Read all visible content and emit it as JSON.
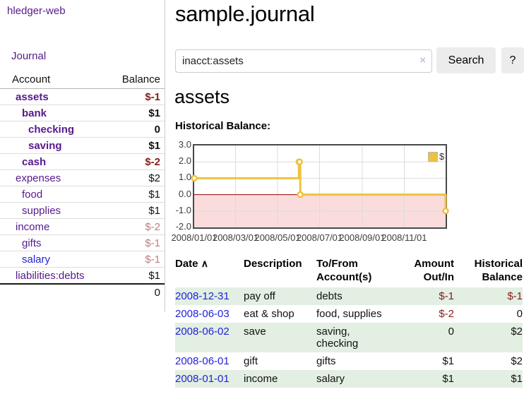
{
  "header": {
    "title": "sample.journal"
  },
  "search": {
    "value": "inacct:assets",
    "clear_icon": "×",
    "button_label": "Search",
    "help_label": "?"
  },
  "sidebar": {
    "brand": "hledger-web",
    "journal_link": "Journal",
    "accounts": {
      "col_account": "Account",
      "col_balance": "Balance",
      "rows": [
        {
          "name": "assets",
          "depth": 1,
          "balance": "$-1",
          "in_query": true,
          "tone": "neg"
        },
        {
          "name": "bank",
          "depth": 2,
          "balance": "$1",
          "in_query": true,
          "tone": "normal"
        },
        {
          "name": "checking",
          "depth": 3,
          "balance": "0",
          "in_query": true,
          "tone": "normal"
        },
        {
          "name": "saving",
          "depth": 3,
          "balance": "$1",
          "in_query": true,
          "tone": "normal"
        },
        {
          "name": "cash",
          "depth": 2,
          "balance": "$-2",
          "in_query": true,
          "tone": "neg"
        },
        {
          "name": "expenses",
          "depth": 1,
          "balance": "$2",
          "in_query": false,
          "tone": "normal"
        },
        {
          "name": "food",
          "depth": 2,
          "balance": "$1",
          "in_query": false,
          "tone": "normal"
        },
        {
          "name": "supplies",
          "depth": 2,
          "balance": "$1",
          "in_query": false,
          "tone": "normal"
        },
        {
          "name": "income",
          "depth": 1,
          "balance": "$-2",
          "in_query": false,
          "tone": "neg-muted"
        },
        {
          "name": "gifts",
          "depth": 2,
          "balance": "$-1",
          "in_query": false,
          "tone": "neg-muted"
        },
        {
          "name": "salary",
          "depth": 2,
          "balance": "$-1",
          "in_query": false,
          "tone": "neg-muted",
          "link_color": "blue"
        },
        {
          "name": "liabilities:debts",
          "depth": 1,
          "balance": "$1",
          "in_query": false,
          "tone": "normal"
        }
      ],
      "total": "0"
    }
  },
  "account_page": {
    "heading": "assets",
    "chart_label": "Historical Balance:"
  },
  "chart_data": {
    "type": "line",
    "style": "steps",
    "title": "Historical Balance:",
    "legend": "$",
    "legend_position": "top-right",
    "grid": true,
    "x_range_days": 365,
    "ylim": [
      -2,
      3
    ],
    "y_ticks": [
      3.0,
      2.0,
      1.0,
      0.0,
      -1.0,
      -2.0
    ],
    "x_ticks": [
      {
        "label": "2008/01/01",
        "day": 0
      },
      {
        "label": "2008/03/01",
        "day": 60
      },
      {
        "label": "2008/05/01",
        "day": 121
      },
      {
        "label": "2008/07/01",
        "day": 182
      },
      {
        "label": "2008/09/01",
        "day": 244
      },
      {
        "label": "2008/11/01",
        "day": 305
      }
    ],
    "series": [
      {
        "name": "$",
        "points": [
          {
            "date": "2008-01-01",
            "day": 0,
            "value": 1
          },
          {
            "date": "2008-06-01",
            "day": 152,
            "value": 2
          },
          {
            "date": "2008-06-02",
            "day": 153,
            "value": 2
          },
          {
            "date": "2008-06-03",
            "day": 154,
            "value": 0
          },
          {
            "date": "2008-12-31",
            "day": 365,
            "value": -1
          }
        ]
      }
    ]
  },
  "register": {
    "columns": [
      {
        "label": "Date",
        "sorted": true,
        "align": "left"
      },
      {
        "label": "Description",
        "align": "left"
      },
      {
        "label": "To/From\nAccount(s)",
        "align": "left"
      },
      {
        "label": "Amount\nOut/In",
        "align": "right"
      },
      {
        "label": "Historical\nBalance",
        "align": "right"
      }
    ],
    "sort_indicator": "∧",
    "rows": [
      {
        "date": "2008-12-31",
        "description": "pay off",
        "accounts": "debts",
        "amount": "$-1",
        "amount_negative": true,
        "balance": "$-1",
        "balance_negative": true
      },
      {
        "date": "2008-06-03",
        "description": "eat & shop",
        "accounts": "food, supplies",
        "amount": "$-2",
        "amount_negative": true,
        "balance": "0",
        "balance_negative": false
      },
      {
        "date": "2008-06-02",
        "description": "save",
        "accounts": "saving,\nchecking",
        "amount": "0",
        "amount_negative": false,
        "balance": "$2",
        "balance_negative": false
      },
      {
        "date": "2008-06-01",
        "description": "gift",
        "accounts": "gifts",
        "amount": "$1",
        "amount_negative": false,
        "balance": "$2",
        "balance_negative": false
      },
      {
        "date": "2008-01-01",
        "description": "income",
        "accounts": "salary",
        "amount": "$1",
        "amount_negative": false,
        "balance": "$1",
        "balance_negative": false
      }
    ]
  },
  "colors": {
    "link_purple": "#551a8b",
    "link_blue": "#2222dd",
    "negative_strong": "#8b1a1a",
    "negative_muted": "#bf7e7e",
    "row_stripe_green": "#e2efe2",
    "series_gold": "#edc240",
    "negative_region_pink": "#fbdcdc",
    "zero_line_dark_red": "#8b0000"
  }
}
